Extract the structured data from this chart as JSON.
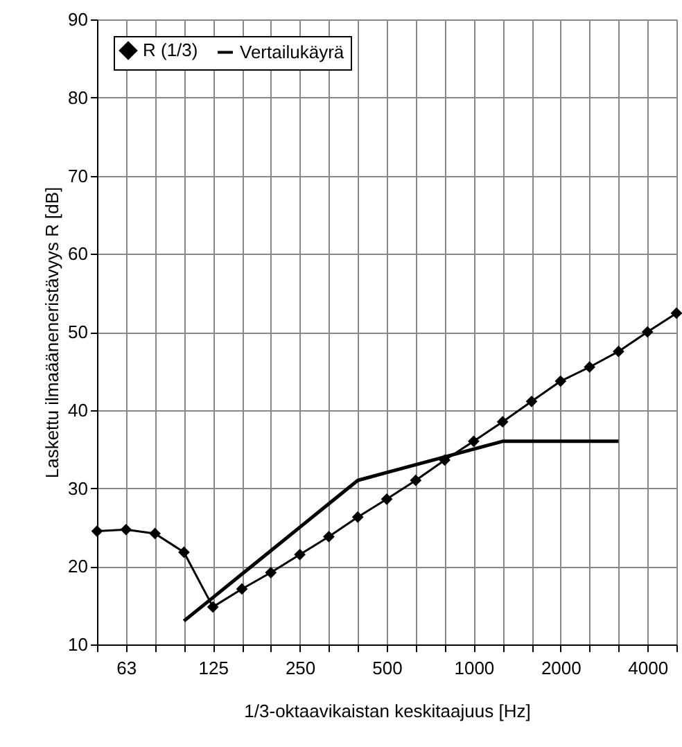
{
  "chart_data": {
    "type": "line",
    "xlabel": "1/3-oktaavikaistan keskitaajuus [Hz]",
    "ylabel": "Laskettu ilmaääneneristävyys R [dB]",
    "categories": [
      null,
      "63",
      null,
      null,
      "125",
      null,
      null,
      "250",
      null,
      null,
      "500",
      null,
      null,
      "1000",
      null,
      null,
      "2000",
      null,
      null,
      "4000",
      null
    ],
    "series": [
      {
        "name": "R (1/3)",
        "color": "#000000",
        "marker": "diamond",
        "values": [
          24.5,
          24.7,
          24.2,
          21.8,
          14.8,
          17.1,
          19.2,
          21.5,
          23.8,
          26.3,
          28.6,
          31,
          33.6,
          36,
          38.5,
          41.1,
          43.7,
          45.5,
          47.5,
          50,
          52.4
        ]
      },
      {
        "name": "Vertailukäyrä",
        "color": "#000000",
        "marker": "none",
        "values": [
          null,
          null,
          null,
          13,
          16,
          19,
          22,
          25,
          28,
          31,
          32,
          33,
          34,
          35,
          36,
          36,
          36,
          36,
          36,
          null,
          null
        ]
      }
    ],
    "ylim": [
      10,
      90
    ],
    "yticks": [
      10,
      20,
      30,
      40,
      50,
      60,
      70,
      80,
      90
    ],
    "grid": true,
    "legend": "top left",
    "line_style": "solid"
  }
}
